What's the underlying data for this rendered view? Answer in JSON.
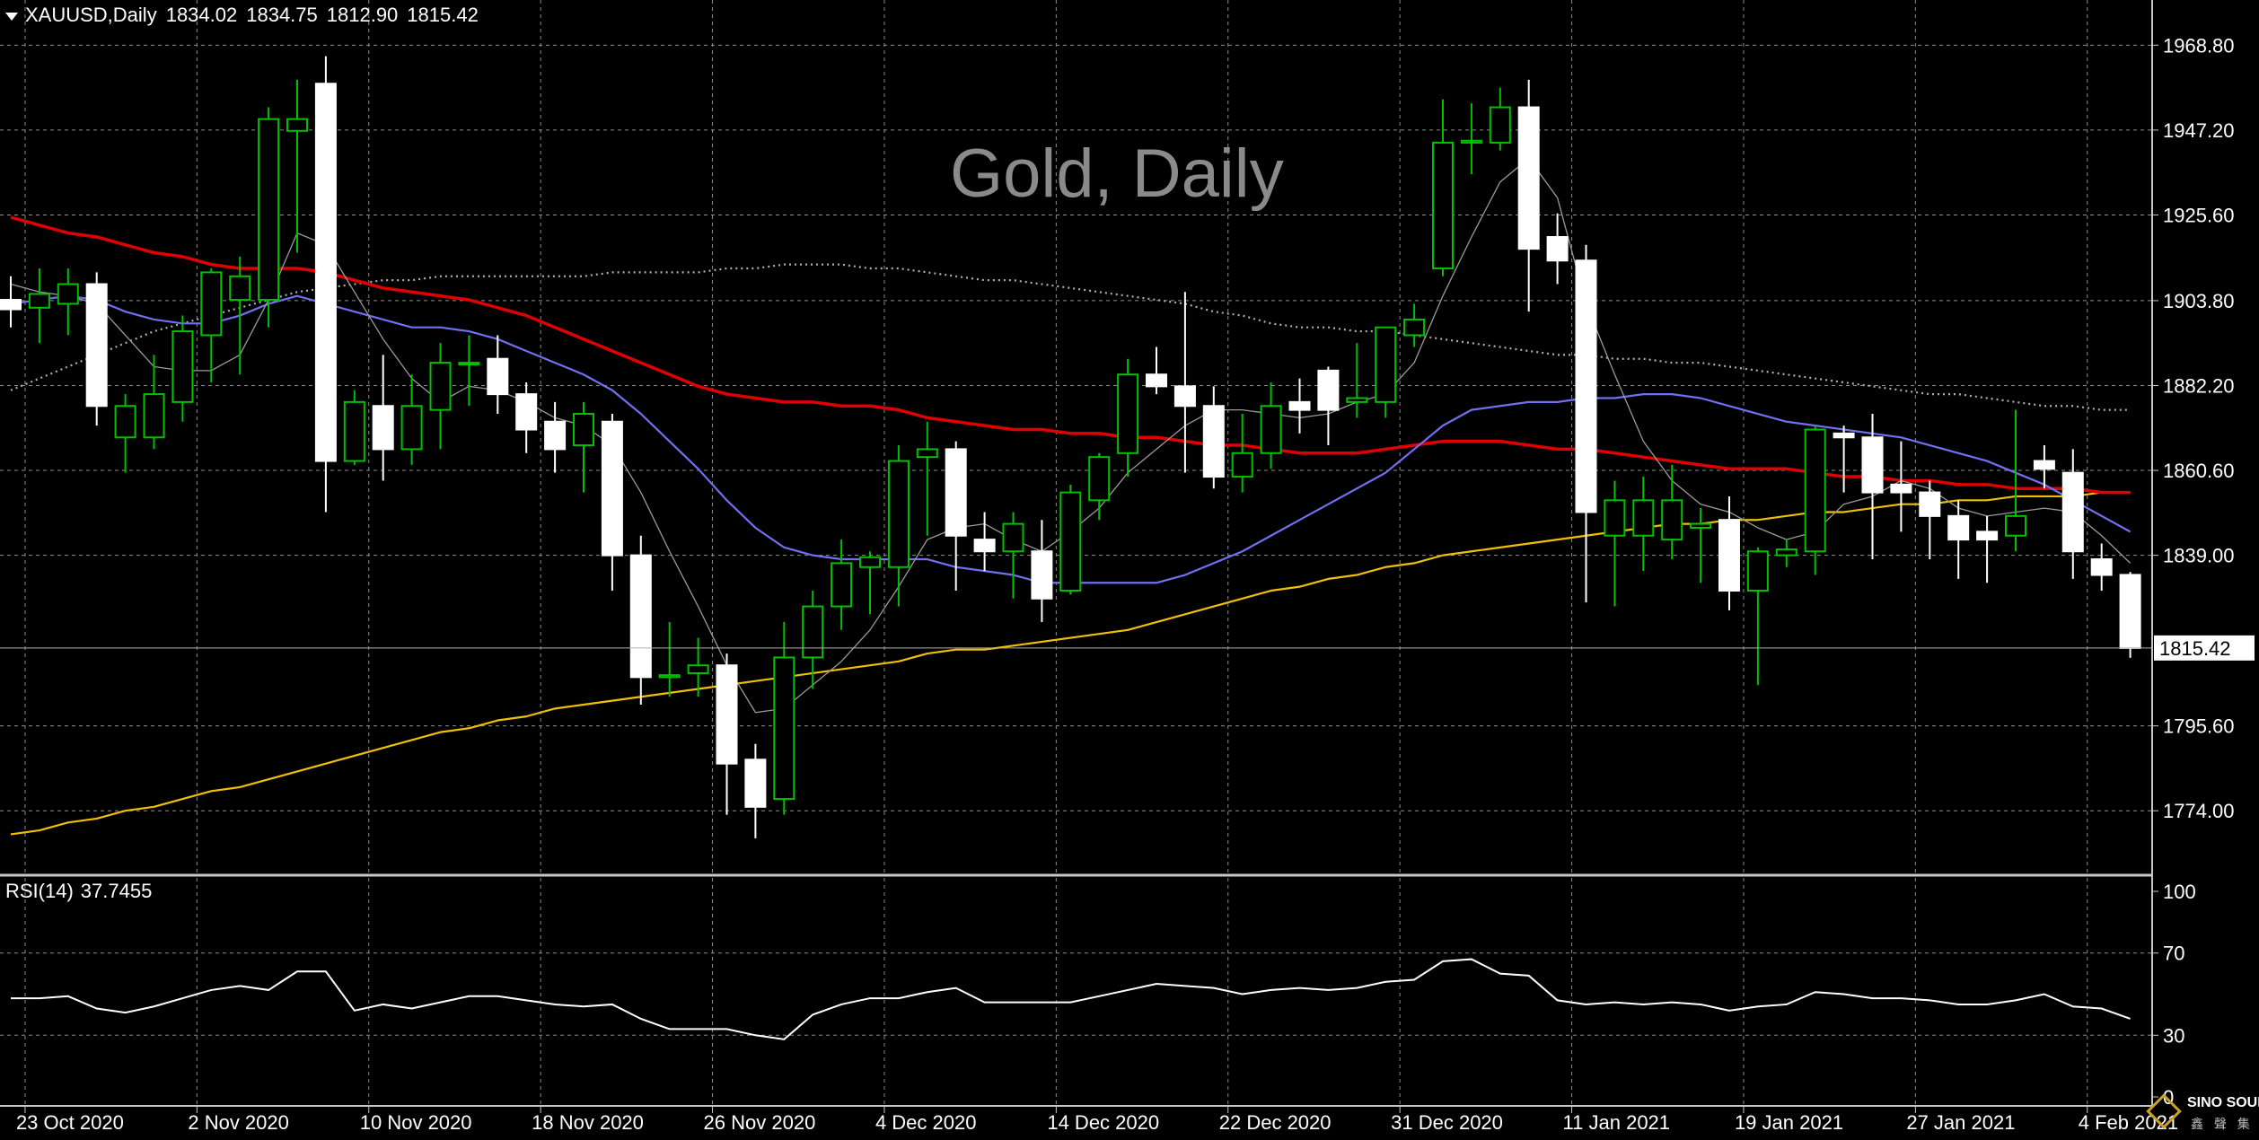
{
  "header": {
    "symbol": "XAUUSD,Daily",
    "open": "1834.02",
    "high": "1834.75",
    "low": "1812.90",
    "close": "1815.42"
  },
  "watermark": "Gold, Daily",
  "rsi_header": {
    "label": "RSI(14)",
    "value": "37.7455"
  },
  "logo": {
    "line1": "SINO SOUND",
    "line2": "鑫 聲 集 團"
  },
  "colors": {
    "background": "#000000",
    "grid": "#8c8c8c",
    "bull_candle": "#00c000",
    "bear_candle": "#ffffff",
    "ma_fast_thin": "#9a9a9a",
    "ma_blue": "#7070f0",
    "ma_red": "#e00000",
    "ma_yellow": "#f0c000",
    "ma_dotted": "#b0b0b0",
    "rsi": "#ffffff"
  },
  "chart_data": {
    "type": "candlestick",
    "ylim": [
      1757.6,
      1980.3
    ],
    "y_ticks": [
      "1968.80",
      "1947.20",
      "1925.60",
      "1903.80",
      "1882.20",
      "1860.60",
      "1839.00",
      "1815.42",
      "1795.60",
      "1774.00"
    ],
    "last_price_label": "1815.42",
    "x_labels": [
      "23 Oct 2020",
      "2 Nov 2020",
      "10 Nov 2020",
      "18 Nov 2020",
      "26 Nov 2020",
      "4 Dec 2020",
      "14 Dec 2020",
      "22 Dec 2020",
      "31 Dec 2020",
      "11 Jan 2021",
      "19 Jan 2021",
      "27 Jan 2021",
      "4 Feb 2021"
    ],
    "x_label_bar_index": [
      0,
      6,
      12,
      18,
      24,
      30,
      36,
      42,
      48,
      54,
      60,
      66,
      72
    ],
    "candles": [
      {
        "o": 1904.0,
        "h": 1910.0,
        "l": 1897.0,
        "c": 1901.6
      },
      {
        "o": 1902.0,
        "h": 1912.0,
        "l": 1893.0,
        "c": 1905.5
      },
      {
        "o": 1903.0,
        "h": 1912.0,
        "l": 1895.0,
        "c": 1908.0
      },
      {
        "o": 1908.0,
        "h": 1911.0,
        "l": 1872.0,
        "c": 1877.0
      },
      {
        "o": 1869.0,
        "h": 1880.0,
        "l": 1860.0,
        "c": 1877.0
      },
      {
        "o": 1869.0,
        "h": 1890.0,
        "l": 1866.0,
        "c": 1880.0
      },
      {
        "o": 1878.0,
        "h": 1900.0,
        "l": 1873.0,
        "c": 1896.0
      },
      {
        "o": 1895.0,
        "h": 1912.0,
        "l": 1883.0,
        "c": 1911.0
      },
      {
        "o": 1904.0,
        "h": 1915.0,
        "l": 1885.0,
        "c": 1910.0
      },
      {
        "o": 1904.0,
        "h": 1953.0,
        "l": 1897.0,
        "c": 1950.0
      },
      {
        "o": 1947.0,
        "h": 1960.0,
        "l": 1916.0,
        "c": 1950.0
      },
      {
        "o": 1959.0,
        "h": 1966.0,
        "l": 1850.0,
        "c": 1863.0
      },
      {
        "o": 1863.0,
        "h": 1881.0,
        "l": 1862.0,
        "c": 1878.0
      },
      {
        "o": 1877.0,
        "h": 1890.0,
        "l": 1858.0,
        "c": 1866.0
      },
      {
        "o": 1866.0,
        "h": 1885.0,
        "l": 1862.0,
        "c": 1877.0
      },
      {
        "o": 1876.0,
        "h": 1893.0,
        "l": 1866.0,
        "c": 1888.0
      },
      {
        "o": 1888.0,
        "h": 1895.0,
        "l": 1877.0,
        "c": 1888.0
      },
      {
        "o": 1889.0,
        "h": 1895.0,
        "l": 1875.0,
        "c": 1880.0
      },
      {
        "o": 1880.0,
        "h": 1883.0,
        "l": 1865.0,
        "c": 1871.0
      },
      {
        "o": 1873.0,
        "h": 1878.0,
        "l": 1860.0,
        "c": 1866.0
      },
      {
        "o": 1867.0,
        "h": 1878.0,
        "l": 1855.0,
        "c": 1875.0
      },
      {
        "o": 1873.0,
        "h": 1875.0,
        "l": 1830.0,
        "c": 1839.0
      },
      {
        "o": 1839.0,
        "h": 1844.0,
        "l": 1801.0,
        "c": 1808.0
      },
      {
        "o": 1808.0,
        "h": 1822.0,
        "l": 1803.0,
        "c": 1808.5
      },
      {
        "o": 1809.0,
        "h": 1818.0,
        "l": 1803.0,
        "c": 1811.0
      },
      {
        "o": 1811.0,
        "h": 1814.0,
        "l": 1773.0,
        "c": 1786.0
      },
      {
        "o": 1787.0,
        "h": 1791.0,
        "l": 1767.0,
        "c": 1775.0
      },
      {
        "o": 1777.0,
        "h": 1822.0,
        "l": 1773.0,
        "c": 1813.0
      },
      {
        "o": 1813.0,
        "h": 1830.0,
        "l": 1805.0,
        "c": 1826.0
      },
      {
        "o": 1826.0,
        "h": 1843.0,
        "l": 1820.0,
        "c": 1837.0
      },
      {
        "o": 1836.0,
        "h": 1840.0,
        "l": 1824.0,
        "c": 1838.5
      },
      {
        "o": 1836.0,
        "h": 1867.0,
        "l": 1826.0,
        "c": 1863.0
      },
      {
        "o": 1864.0,
        "h": 1873.0,
        "l": 1844.0,
        "c": 1866.0
      },
      {
        "o": 1866.0,
        "h": 1868.0,
        "l": 1830.0,
        "c": 1844.0
      },
      {
        "o": 1843.0,
        "h": 1850.0,
        "l": 1835.0,
        "c": 1840.0
      },
      {
        "o": 1840.0,
        "h": 1850.0,
        "l": 1828.0,
        "c": 1847.0
      },
      {
        "o": 1840.0,
        "h": 1848.0,
        "l": 1822.0,
        "c": 1828.0
      },
      {
        "o": 1830.0,
        "h": 1857.0,
        "l": 1829.0,
        "c": 1855.0
      },
      {
        "o": 1853.0,
        "h": 1865.0,
        "l": 1848.0,
        "c": 1864.0
      },
      {
        "o": 1865.0,
        "h": 1889.0,
        "l": 1859.0,
        "c": 1885.0
      },
      {
        "o": 1885.0,
        "h": 1892.0,
        "l": 1880.0,
        "c": 1882.0
      },
      {
        "o": 1882.0,
        "h": 1906.0,
        "l": 1860.0,
        "c": 1877.0
      },
      {
        "o": 1877.0,
        "h": 1882.0,
        "l": 1856.0,
        "c": 1859.0
      },
      {
        "o": 1859.0,
        "h": 1875.0,
        "l": 1855.0,
        "c": 1865.0
      },
      {
        "o": 1865.0,
        "h": 1883.0,
        "l": 1861.0,
        "c": 1877.0
      },
      {
        "o": 1878.0,
        "h": 1884.0,
        "l": 1870.0,
        "c": 1876.0
      },
      {
        "o": 1886.0,
        "h": 1887.0,
        "l": 1867.0,
        "c": 1876.0
      },
      {
        "o": 1878.0,
        "h": 1893.0,
        "l": 1874.0,
        "c": 1879.0
      },
      {
        "o": 1878.0,
        "h": 1897.0,
        "l": 1874.0,
        "c": 1897.0
      },
      {
        "o": 1895.0,
        "h": 1903.0,
        "l": 1892.0,
        "c": 1899.0
      },
      {
        "o": 1912.0,
        "h": 1955.0,
        "l": 1910.0,
        "c": 1944.0
      },
      {
        "o": 1944.0,
        "h": 1954.0,
        "l": 1936.0,
        "c": 1944.5
      },
      {
        "o": 1944.0,
        "h": 1958.0,
        "l": 1942.0,
        "c": 1953.0
      },
      {
        "o": 1953.0,
        "h": 1960.0,
        "l": 1901.0,
        "c": 1917.0
      },
      {
        "o": 1920.0,
        "h": 1926.0,
        "l": 1908.0,
        "c": 1914.0
      },
      {
        "o": 1914.0,
        "h": 1918.0,
        "l": 1827.0,
        "c": 1850.0
      },
      {
        "o": 1844.0,
        "h": 1858.0,
        "l": 1826.0,
        "c": 1853.0
      },
      {
        "o": 1844.0,
        "h": 1859.0,
        "l": 1835.0,
        "c": 1853.0
      },
      {
        "o": 1843.0,
        "h": 1862.0,
        "l": 1838.0,
        "c": 1853.0
      },
      {
        "o": 1846.0,
        "h": 1851.0,
        "l": 1832.0,
        "c": 1847.0
      },
      {
        "o": 1848.0,
        "h": 1854.0,
        "l": 1825.0,
        "c": 1830.0
      },
      {
        "o": 1830.0,
        "h": 1841.0,
        "l": 1806.0,
        "c": 1840.0
      },
      {
        "o": 1839.0,
        "h": 1843.0,
        "l": 1836.0,
        "c": 1840.5
      },
      {
        "o": 1840.0,
        "h": 1872.0,
        "l": 1834.0,
        "c": 1871.0
      },
      {
        "o": 1870.0,
        "h": 1872.0,
        "l": 1855.0,
        "c": 1869.0
      },
      {
        "o": 1869.0,
        "h": 1875.0,
        "l": 1838.0,
        "c": 1855.0
      },
      {
        "o": 1857.0,
        "h": 1868.0,
        "l": 1845.0,
        "c": 1855.0
      },
      {
        "o": 1855.0,
        "h": 1858.0,
        "l": 1838.0,
        "c": 1849.0
      },
      {
        "o": 1849.0,
        "h": 1853.0,
        "l": 1833.0,
        "c": 1843.0
      },
      {
        "o": 1845.0,
        "h": 1849.0,
        "l": 1832.0,
        "c": 1843.0
      },
      {
        "o": 1844.0,
        "h": 1876.0,
        "l": 1840.0,
        "c": 1849.0
      },
      {
        "o": 1863.0,
        "h": 1867.0,
        "l": 1856.0,
        "c": 1861.0
      },
      {
        "o": 1860.0,
        "h": 1866.0,
        "l": 1833.0,
        "c": 1840.0
      },
      {
        "o": 1838.0,
        "h": 1842.0,
        "l": 1830.0,
        "c": 1834.0
      },
      {
        "o": 1834.02,
        "h": 1834.75,
        "l": 1812.9,
        "c": 1815.42
      }
    ],
    "moving_averages": [
      {
        "color_key": "ma_fast_thin",
        "style": "thin",
        "values": [
          1908,
          1906,
          1905,
          1903,
          1895,
          1887,
          1886,
          1886,
          1890,
          1904,
          1921,
          1918,
          1906,
          1894,
          1884,
          1878,
          1882,
          1881,
          1878,
          1874,
          1872,
          1867,
          1855,
          1840,
          1826,
          1811,
          1799,
          1800,
          1806,
          1812,
          1820,
          1831,
          1843,
          1846,
          1847,
          1843,
          1840,
          1845,
          1851,
          1860,
          1866,
          1872,
          1876,
          1876,
          1875,
          1874,
          1875,
          1878,
          1880,
          1888,
          1905,
          1920,
          1934,
          1940,
          1930,
          1903,
          1885,
          1868,
          1858,
          1852,
          1850,
          1846,
          1843,
          1845,
          1852,
          1854,
          1858,
          1856,
          1851,
          1849,
          1850,
          1851,
          1850,
          1844,
          1837
        ]
      },
      {
        "color_key": "ma_blue",
        "style": "medium",
        "values": [
          1903,
          1904,
          1905,
          1904,
          1901,
          1899,
          1898,
          1898,
          1900,
          1903,
          1905,
          1903,
          1901,
          1899,
          1897,
          1897,
          1896,
          1894,
          1891,
          1888,
          1885,
          1881,
          1875,
          1868,
          1861,
          1853,
          1846,
          1841,
          1839,
          1838,
          1838,
          1838,
          1838,
          1836,
          1835,
          1834,
          1832,
          1832,
          1832,
          1832,
          1832,
          1834,
          1837,
          1840,
          1844,
          1848,
          1852,
          1856,
          1860,
          1866,
          1872,
          1876,
          1877,
          1878,
          1878,
          1879,
          1879,
          1880,
          1880,
          1879,
          1877,
          1875,
          1873,
          1872,
          1871,
          1870,
          1869,
          1867,
          1865,
          1863,
          1860,
          1857,
          1853,
          1849,
          1845
        ]
      },
      {
        "color_key": "ma_red",
        "style": "thick",
        "values": [
          1925,
          1923,
          1921,
          1920,
          1918,
          1916,
          1915,
          1913,
          1912,
          1912,
          1912,
          1911,
          1909,
          1907,
          1906,
          1905,
          1904,
          1902,
          1900,
          1897,
          1894,
          1891,
          1888,
          1885,
          1882,
          1880,
          1879,
          1878,
          1878,
          1877,
          1877,
          1876,
          1874,
          1873,
          1872,
          1871,
          1871,
          1870,
          1870,
          1869,
          1869,
          1868,
          1867,
          1867,
          1866,
          1865,
          1865,
          1865,
          1866,
          1867,
          1868,
          1868,
          1868,
          1867,
          1866,
          1866,
          1865,
          1864,
          1863,
          1862,
          1861,
          1861,
          1861,
          1860,
          1859,
          1859,
          1858,
          1858,
          1857,
          1857,
          1856,
          1856,
          1856,
          1855,
          1855
        ]
      },
      {
        "color_key": "ma_yellow",
        "style": "medium",
        "values": [
          1768,
          1769,
          1771,
          1772,
          1774,
          1775,
          1777,
          1779,
          1780,
          1782,
          1784,
          1786,
          1788,
          1790,
          1792,
          1794,
          1795,
          1797,
          1798,
          1800,
          1801,
          1802,
          1803,
          1804,
          1805,
          1806,
          1807,
          1808,
          1809,
          1810,
          1811,
          1812,
          1814,
          1815,
          1815,
          1816,
          1817,
          1818,
          1819,
          1820,
          1822,
          1824,
          1826,
          1828,
          1830,
          1831,
          1833,
          1834,
          1836,
          1837,
          1839,
          1840,
          1841,
          1842,
          1843,
          1844,
          1845,
          1846,
          1847,
          1847,
          1848,
          1848,
          1849,
          1850,
          1850,
          1851,
          1852,
          1852,
          1853,
          1853,
          1854,
          1854,
          1854,
          1855,
          1855
        ]
      },
      {
        "color_key": "ma_dotted",
        "style": "dotted",
        "values": [
          1881,
          1884,
          1887,
          1890,
          1893,
          1896,
          1898,
          1900,
          1902,
          1904,
          1906,
          1907,
          1908,
          1909,
          1909,
          1910,
          1910,
          1910,
          1910,
          1910,
          1910,
          1911,
          1911,
          1911,
          1911,
          1912,
          1912,
          1913,
          1913,
          1913,
          1912,
          1912,
          1911,
          1910,
          1909,
          1909,
          1908,
          1907,
          1906,
          1905,
          1904,
          1903,
          1901,
          1900,
          1898,
          1897,
          1897,
          1896,
          1896,
          1895,
          1894,
          1893,
          1892,
          1891,
          1890,
          1890,
          1889,
          1889,
          1888,
          1888,
          1887,
          1886,
          1885,
          1884,
          1883,
          1882,
          1881,
          1880,
          1880,
          1879,
          1878,
          1877,
          1877,
          1876,
          1876
        ]
      }
    ],
    "rsi": {
      "label": "RSI(14)",
      "ylim": [
        0,
        100
      ],
      "y_ticks": [
        "100",
        "70",
        "30",
        "0"
      ],
      "levels": [
        70,
        30
      ],
      "values": [
        48,
        48,
        49,
        43,
        41,
        44,
        48,
        52,
        54,
        52,
        61,
        61,
        42,
        45,
        43,
        46,
        49,
        49,
        47,
        45,
        44,
        45,
        38,
        33,
        33,
        33,
        30,
        28,
        40,
        45,
        48,
        48,
        51,
        53,
        46,
        46,
        46,
        46,
        49,
        52,
        55,
        54,
        53,
        50,
        52,
        53,
        52,
        53,
        56,
        57,
        66,
        67,
        60,
        59,
        47,
        45,
        46,
        45,
        46,
        45,
        42,
        44,
        45,
        51,
        50,
        48,
        48,
        47,
        45,
        45,
        47,
        50,
        44,
        43,
        38
      ]
    }
  }
}
